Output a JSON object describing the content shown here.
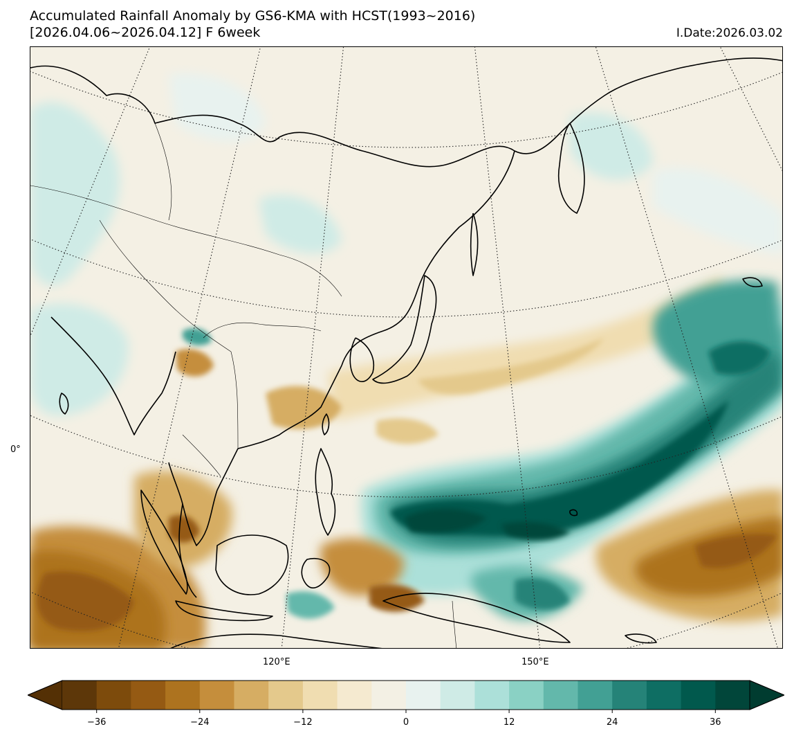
{
  "title": {
    "line1": "Accumulated Rainfall Anomaly by GS6-KMA with HCST(1993~2016)",
    "line2": "[2026.04.06~2026.04.12] F 6week",
    "init_date": "I.Date:2026.03.02"
  },
  "map": {
    "lon_labels": [
      "120°E",
      "150°E"
    ],
    "lat_labels": [
      "0°"
    ],
    "colors": {
      "land_base": "#f4f0e4",
      "coastline": "#000000",
      "graticule": "#222222"
    }
  },
  "colorbar": {
    "levels": [
      -40,
      -36,
      -32,
      -28,
      -24,
      -20,
      -16,
      -12,
      -8,
      -4,
      0,
      4,
      8,
      12,
      16,
      20,
      24,
      28,
      32,
      36,
      40
    ],
    "colors": [
      "#5d3709",
      "#7d4b0c",
      "#955a13",
      "#ad731f",
      "#c58e3c",
      "#d6ad63",
      "#e4c98c",
      "#f0ddb1",
      "#f5ead0",
      "#f3f0e4",
      "#e8f2ef",
      "#cfebe6",
      "#ace0d9",
      "#8ad1c4",
      "#63b8ab",
      "#42a094",
      "#258378",
      "#0e6e63",
      "#01594d",
      "#01463a"
    ],
    "extend_low_color": "#543005",
    "extend_high_color": "#003c30",
    "tick_labels": [
      "−36",
      "−24",
      "−12",
      "0",
      "12",
      "24",
      "36"
    ],
    "tick_values": [
      -36,
      -24,
      -12,
      0,
      12,
      24,
      36
    ]
  }
}
